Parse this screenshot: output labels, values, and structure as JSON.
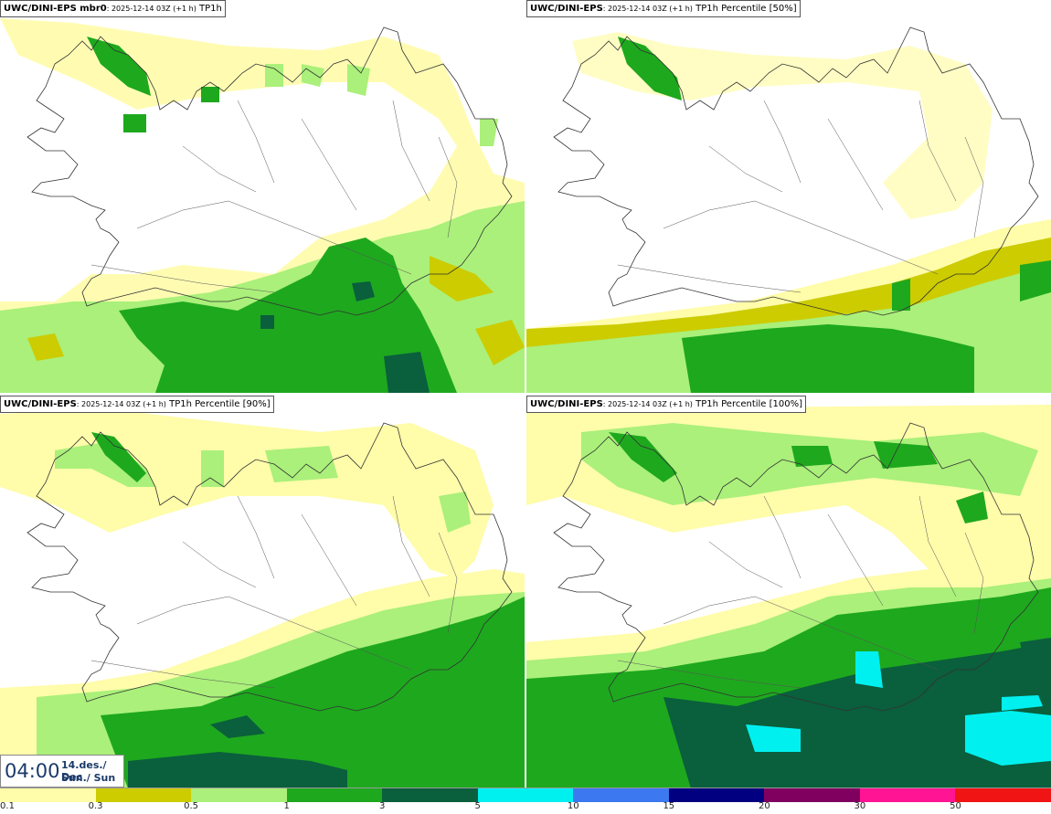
{
  "panels": [
    {
      "model": "UWC/DINI-EPS mbr0",
      "run": "2025-12-14 03Z (+1 h)",
      "field": "TP1h"
    },
    {
      "model": "UWC/DINI-EPS",
      "run": "2025-12-14 03Z (+1 h)",
      "field": "TP1h Percentile [50%]"
    },
    {
      "model": "UWC/DINI-EPS",
      "run": "2025-12-14 03Z (+1 h)",
      "field": "TP1h Percentile [90%]"
    },
    {
      "model": "UWC/DINI-EPS",
      "run": "2025-12-14 03Z (+1 h)",
      "field": "TP1h Percentile [100%]"
    }
  ],
  "valid_time": {
    "time": "04:00",
    "date_line1": "14.des./ Dec",
    "date_line2": "Sun./ Sun"
  },
  "legend": {
    "colors": [
      "#fffcaa",
      "#cccc00",
      "#aaf07a",
      "#1ea81e",
      "#0a5f3c",
      "#00f0f0",
      "#3c78f0",
      "#000080",
      "#800060",
      "#ff1493",
      "#f01414"
    ],
    "ticks": [
      "0.1",
      "0.3",
      "0.5",
      "1",
      "3",
      "5",
      "10",
      "15",
      "20",
      "30",
      "50"
    ]
  }
}
